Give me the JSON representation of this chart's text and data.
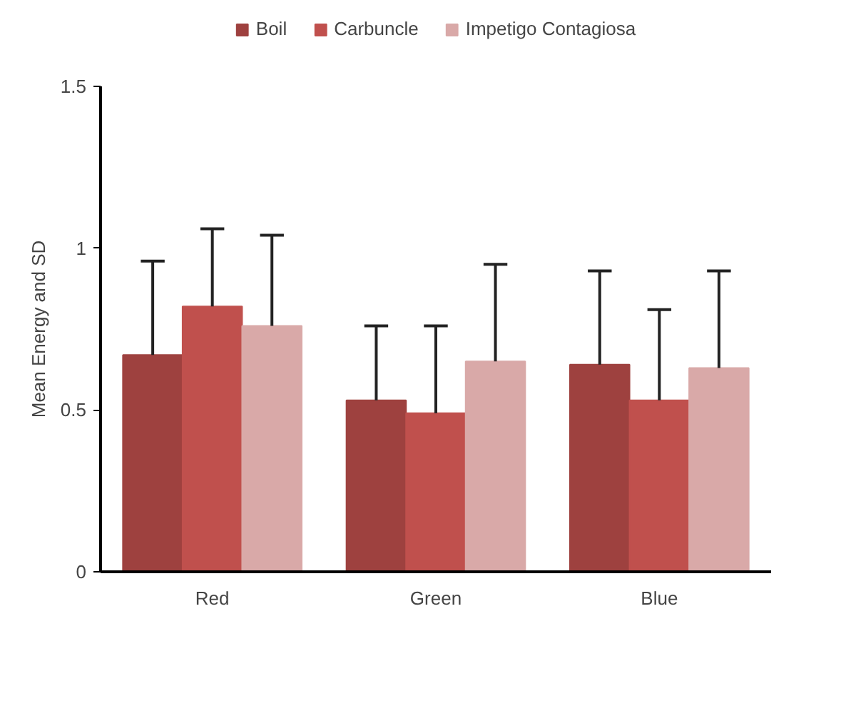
{
  "chart_data": {
    "type": "bar",
    "ylabel": "Mean Energy and SD",
    "categories": [
      "Red",
      "Green",
      "Blue"
    ],
    "series": [
      {
        "name": "Boil",
        "color": "#9e413f",
        "values": [
          0.67,
          0.53,
          0.64
        ],
        "errors": [
          [
            0.67,
            0.96
          ],
          [
            0.53,
            0.76
          ],
          [
            0.64,
            0.93
          ]
        ]
      },
      {
        "name": "Carbuncle",
        "color": "#c0504d",
        "values": [
          0.82,
          0.49,
          0.53
        ],
        "errors": [
          [
            0.82,
            1.06
          ],
          [
            0.49,
            0.76
          ],
          [
            0.53,
            0.81
          ]
        ]
      },
      {
        "name": "Impetigo Contagiosa",
        "color": "#d9a9a8",
        "values": [
          0.76,
          0.65,
          0.63
        ],
        "errors": [
          [
            0.76,
            1.04
          ],
          [
            0.65,
            0.95
          ],
          [
            0.63,
            0.93
          ]
        ]
      }
    ],
    "ylim": [
      0,
      1.5
    ],
    "yticks": [
      0,
      0.5,
      1,
      1.5
    ],
    "grid": false,
    "legend": "top"
  }
}
